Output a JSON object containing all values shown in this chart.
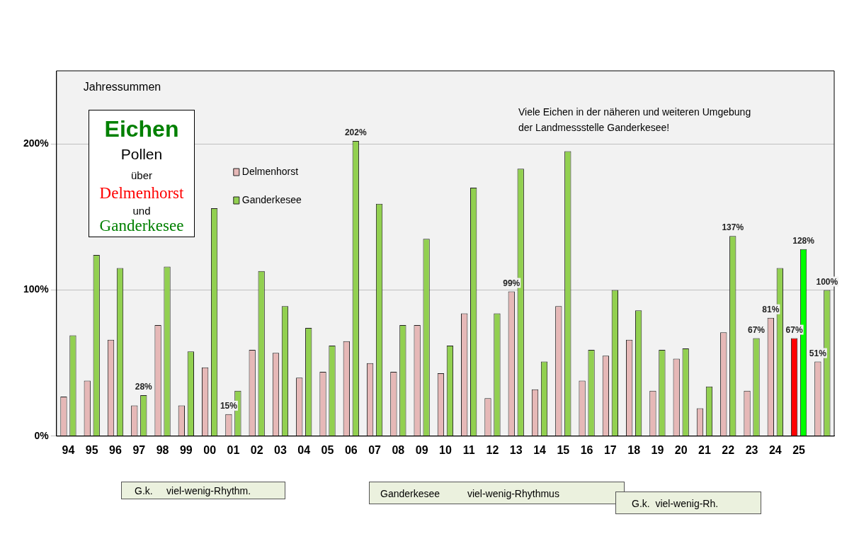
{
  "chart_data": {
    "type": "bar",
    "title": "Jahressummen",
    "categories": [
      "94",
      "95",
      "96",
      "97",
      "98",
      "99",
      "00",
      "01",
      "02",
      "03",
      "04",
      "05",
      "06",
      "07",
      "08",
      "09",
      "10",
      "11",
      "12",
      "13",
      "14",
      "15",
      "16",
      "17",
      "18",
      "19",
      "20",
      "21",
      "22",
      "23",
      "24",
      "25",
      null
    ],
    "series": [
      {
        "name": "Delmenhorst",
        "color": "#e6b8b7",
        "colors": [
          "#e6b8b7",
          "#e6b8b7",
          "#e6b8b7",
          "#e6b8b7",
          "#e6b8b7",
          "#e6b8b7",
          "#e6b8b7",
          "#e6b8b7",
          "#e6b8b7",
          "#e6b8b7",
          "#e6b8b7",
          "#e6b8b7",
          "#e6b8b7",
          "#e6b8b7",
          "#e6b8b7",
          "#e6b8b7",
          "#e6b8b7",
          "#e6b8b7",
          "#e6b8b7",
          "#e6b8b7",
          "#e6b8b7",
          "#e6b8b7",
          "#e6b8b7",
          "#e6b8b7",
          "#e6b8b7",
          "#e6b8b7",
          "#e6b8b7",
          "#e6b8b7",
          "#e6b8b7",
          "#e6b8b7",
          "#e6b8b7",
          "#ff0000",
          "#e6b8b7"
        ],
        "values": [
          27,
          38,
          66,
          21,
          76,
          21,
          47,
          15,
          59,
          57,
          40,
          44,
          65,
          50,
          44,
          76,
          43,
          84,
          26,
          99,
          32,
          89,
          38,
          55,
          66,
          31,
          53,
          19,
          71,
          31,
          81,
          67,
          51
        ],
        "value_labels": [
          null,
          null,
          null,
          null,
          null,
          null,
          null,
          "15%",
          null,
          null,
          null,
          null,
          null,
          null,
          null,
          null,
          null,
          null,
          null,
          "99%",
          null,
          null,
          null,
          null,
          null,
          null,
          null,
          null,
          null,
          null,
          "81%",
          "67%",
          "51%"
        ]
      },
      {
        "name": "Ganderkesee",
        "color": "#92d050",
        "colors": [
          "#92d050",
          "#92d050",
          "#92d050",
          "#92d050",
          "#92d050",
          "#92d050",
          "#92d050",
          "#92d050",
          "#92d050",
          "#92d050",
          "#92d050",
          "#92d050",
          "#92d050",
          "#92d050",
          "#92d050",
          "#92d050",
          "#92d050",
          "#92d050",
          "#92d050",
          "#92d050",
          "#92d050",
          "#92d050",
          "#92d050",
          "#92d050",
          "#92d050",
          "#92d050",
          "#92d050",
          "#92d050",
          "#92d050",
          "#92d050",
          "#92d050",
          "#00ff00",
          "#92d050"
        ],
        "values": [
          69,
          124,
          115,
          28,
          116,
          58,
          156,
          31,
          113,
          89,
          74,
          62,
          202,
          159,
          76,
          135,
          62,
          170,
          84,
          183,
          51,
          195,
          59,
          100,
          86,
          59,
          60,
          34,
          137,
          67,
          115,
          128,
          100
        ],
        "value_labels": [
          null,
          null,
          null,
          "28%",
          null,
          null,
          null,
          null,
          null,
          null,
          null,
          null,
          "202%",
          null,
          null,
          null,
          null,
          null,
          null,
          null,
          null,
          null,
          null,
          null,
          null,
          null,
          null,
          null,
          "137%",
          "67%",
          null,
          "128%",
          "100%"
        ]
      }
    ],
    "ylim": [
      0,
      250
    ],
    "yticks": [
      {
        "value": 0,
        "label": "0%"
      },
      {
        "value": 100,
        "label": "100%"
      },
      {
        "value": 200,
        "label": "200%"
      }
    ],
    "grid": "y",
    "legend": "top left",
    "annotations": [
      "Eichen",
      "Pollen",
      "über",
      "Delmenhorst",
      "und",
      "Ganderkesee",
      "Viele Eichen in der näheren und weiteren Umgebung der Landmessstelle Ganderkesee!",
      "G.k.     viel-wenig-Rhythm.",
      "Ganderkesee          viel-wenig-Rhythmus",
      "G.k.  viel-wenig-Rh."
    ]
  }
}
